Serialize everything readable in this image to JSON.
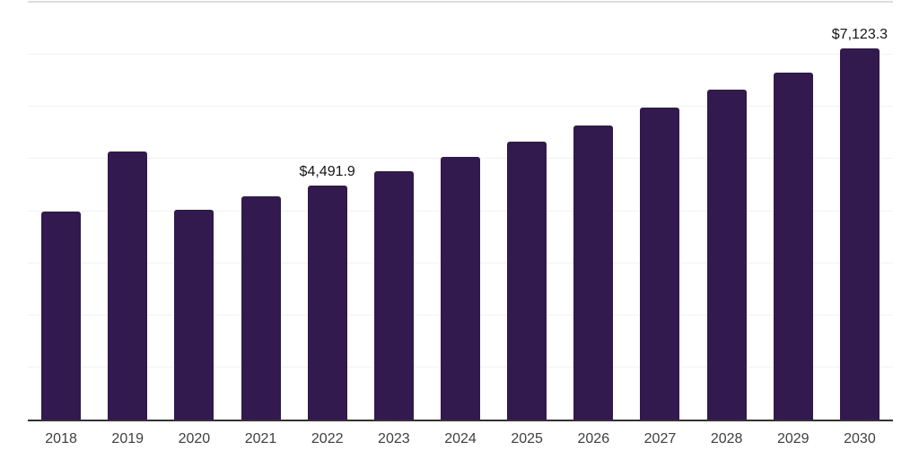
{
  "chart_data": {
    "type": "bar",
    "title": "",
    "xlabel": "",
    "ylabel": "",
    "categories": [
      "2018",
      "2019",
      "2020",
      "2021",
      "2022",
      "2023",
      "2024",
      "2025",
      "2026",
      "2027",
      "2028",
      "2029",
      "2030"
    ],
    "values": [
      3985,
      5140,
      4030,
      4290,
      4491.9,
      4758,
      5045,
      5330,
      5640,
      5980,
      6335,
      6660,
      7123.3
    ],
    "value_labels": [
      {
        "category": "2022",
        "text": "$4,491.9"
      },
      {
        "category": "2030",
        "text": "$7,123.3"
      }
    ],
    "ylim": [
      0,
      8000
    ],
    "gridline_interval": 1000,
    "grid": true,
    "legend": "none",
    "colors": {
      "bar": "#32194e",
      "gridline": "#f2f2f2",
      "top_border": "#dcdcdc",
      "axis_line": "#333333",
      "tick_label": "#3f3f3f",
      "value_label": "#151515",
      "background": "#ffffff"
    }
  }
}
